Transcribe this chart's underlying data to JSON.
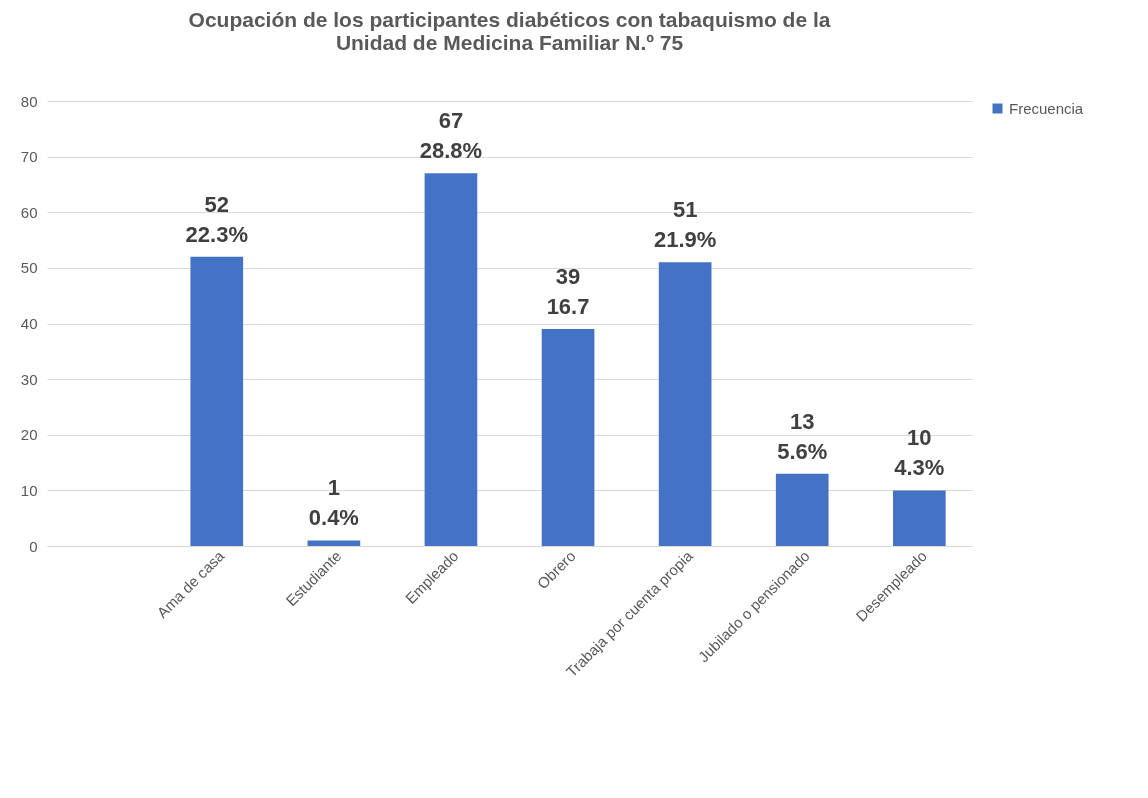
{
  "chart_data": {
    "type": "bar",
    "title": [
      "Ocupación de los participantes diabéticos con tabaquismo de la",
      "Unidad de Medicina Familiar N.º 75"
    ],
    "categories": [
      null,
      "Ama de casa",
      "Estudiante",
      "Empleado",
      "Obrero",
      "Trabaja por cuenta propia",
      "Jubilado o pensionado",
      "Desempleado"
    ],
    "series": [
      {
        "name": "Frecuencia",
        "color": "#4472c4",
        "values": [
          null,
          52,
          1,
          67,
          39,
          51,
          13,
          10
        ],
        "value_labels": [
          null,
          "52\n22.3%",
          "1\n0.4%",
          "67\n28.8%",
          "39\n16.7",
          "51\n21.9%",
          "13\n5.6%",
          "10\n4.3%"
        ]
      }
    ],
    "ylim": [
      0,
      80
    ],
    "yticks": [
      0,
      10,
      20,
      30,
      40,
      50,
      60,
      70,
      80
    ],
    "grid": "y",
    "legend": "right"
  }
}
